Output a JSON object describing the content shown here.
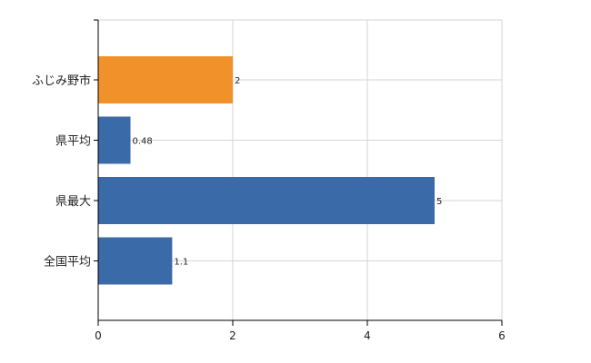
{
  "chart_data": {
    "type": "bar",
    "orientation": "horizontal",
    "title": "",
    "xlabel": "",
    "ylabel": "",
    "categories": [
      "ふじみ野市",
      "県平均",
      "県最大",
      "全国平均"
    ],
    "values": [
      2,
      0.48,
      5,
      1.1
    ],
    "value_labels": [
      "2",
      "0.48",
      "5",
      "1.1"
    ],
    "colors": [
      "#f0912a",
      "#3b6aa8",
      "#3b6aa8",
      "#3b6aa8"
    ],
    "xlim": [
      0,
      6
    ],
    "xticks": [
      0,
      2,
      4,
      6
    ],
    "xtick_labels": [
      "0",
      "2",
      "4",
      "6"
    ],
    "grid": true,
    "legend": "none"
  }
}
